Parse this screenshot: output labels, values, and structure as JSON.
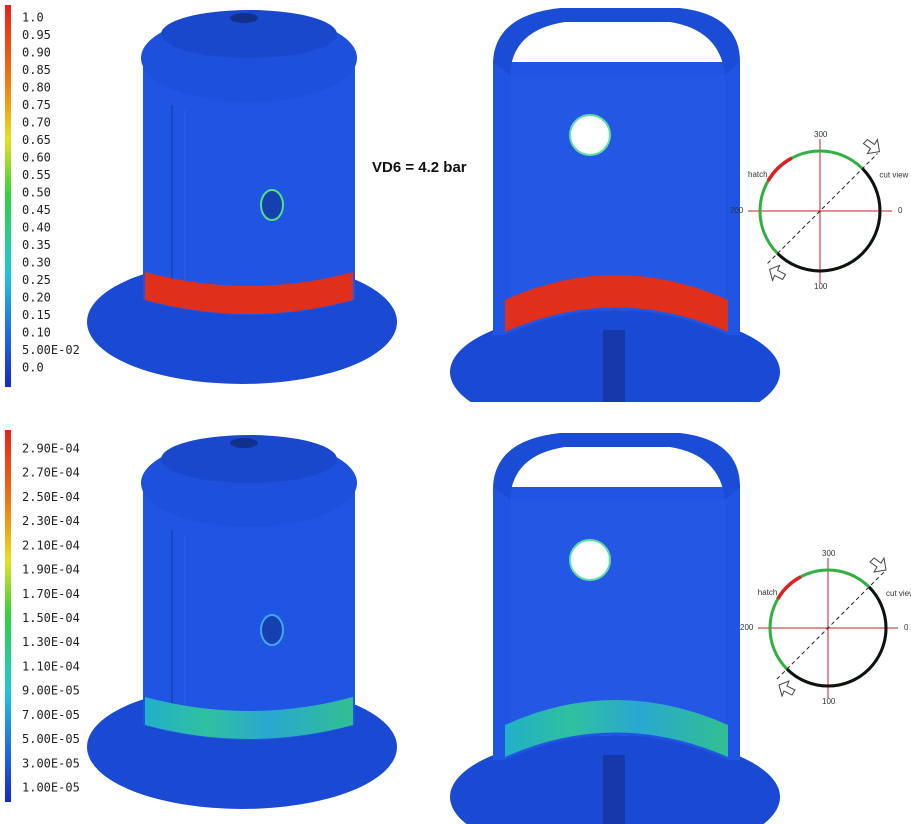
{
  "top_panel": {
    "legend": {
      "labels": [
        "1.0",
        "0.95",
        "0.90",
        "0.85",
        "0.80",
        "0.75",
        "0.70",
        "0.65",
        "0.60",
        "0.55",
        "0.50",
        "0.45",
        "0.40",
        "0.35",
        "0.30",
        "0.25",
        "0.20",
        "0.15",
        "0.10",
        "5.00E-02",
        "0.0"
      ]
    },
    "annotation": "VD6 = 4.2 bar",
    "diagram": {
      "hatch": "hatch",
      "cut_view": "cut view",
      "angles": [
        "300",
        "200",
        "100",
        "0"
      ]
    }
  },
  "bottom_panel": {
    "legend": {
      "labels": [
        "2.90E-04",
        "2.70E-04",
        "2.50E-04",
        "2.30E-04",
        "2.10E-04",
        "1.90E-04",
        "1.70E-04",
        "1.50E-04",
        "1.30E-04",
        "1.10E-04",
        "9.00E-05",
        "7.00E-05",
        "5.00E-05",
        "3.00E-05",
        "1.00E-05"
      ]
    },
    "diagram": {
      "hatch": "hatch",
      "cut_view": "cut view",
      "angles": [
        "300",
        "200",
        "100",
        "0"
      ]
    }
  }
}
